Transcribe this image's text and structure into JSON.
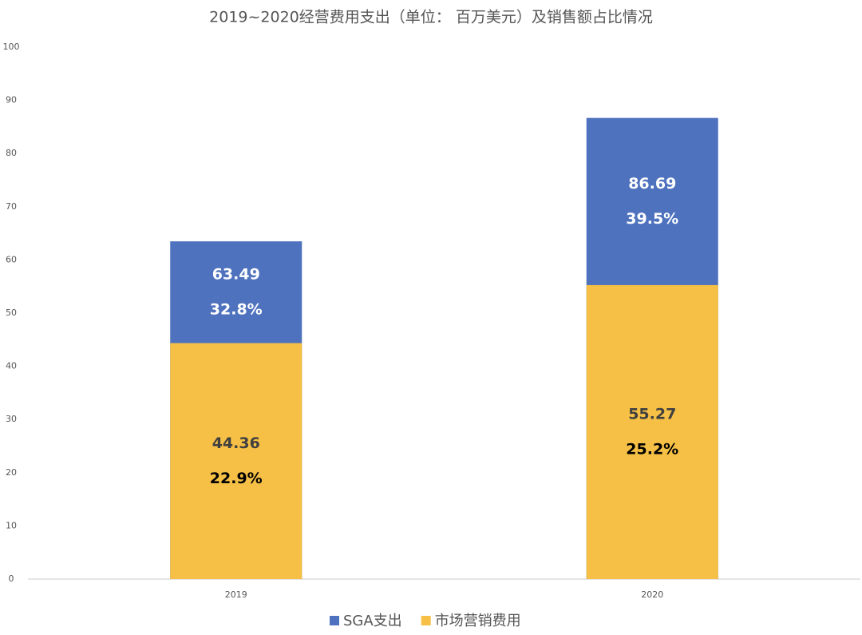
{
  "chart_data": {
    "type": "bar",
    "layout": "overlap",
    "title": "2019~2020经营费用支出（单位： 百万美元）及销售额占比情况",
    "categories": [
      "2019",
      "2020"
    ],
    "series": [
      {
        "name": "SGA支出",
        "color": "#4e72be",
        "label_color": "#ffffff",
        "share_color": "#ffffff",
        "values": [
          63.49,
          86.69
        ],
        "shares": [
          32.8,
          39.5
        ],
        "share_labels": [
          "32.8%",
          "39.5%"
        ]
      },
      {
        "name": "市场营销费用",
        "color": "#f5c045",
        "label_color": "#404040",
        "share_color": "#000000",
        "values": [
          44.36,
          55.27
        ],
        "shares": [
          22.9,
          25.2
        ],
        "share_labels": [
          "22.9%",
          "25.2%"
        ]
      }
    ],
    "ylim": [
      0,
      100
    ],
    "yticks": [
      0,
      10,
      20,
      30,
      40,
      50,
      60,
      70,
      80,
      90,
      100
    ],
    "grid": false
  }
}
